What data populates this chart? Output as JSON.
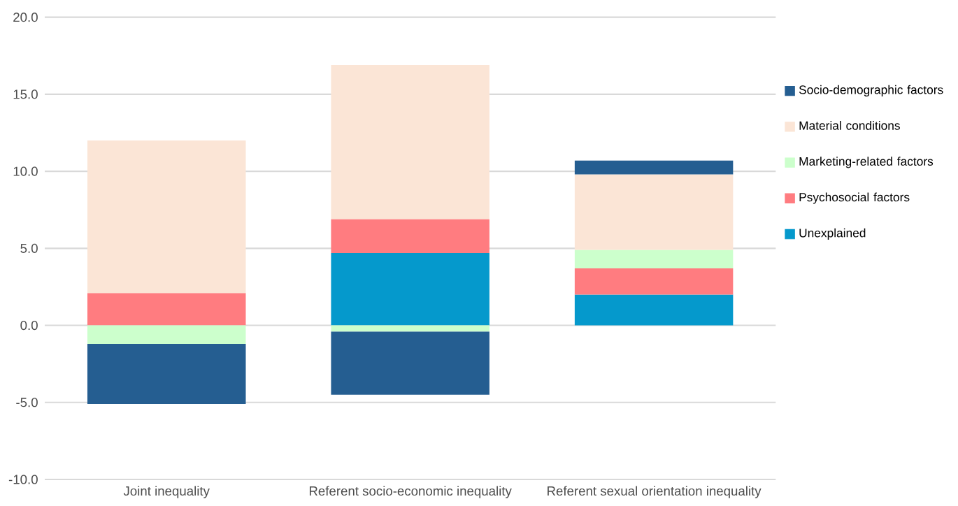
{
  "chart_data": {
    "type": "bar",
    "stacked": true,
    "categories": [
      "Joint inequality",
      "Referent socio-economic inequality",
      "Referent sexual orientation inequality"
    ],
    "series": [
      {
        "name": "Unexplained",
        "color": "#0599cc",
        "values": [
          null,
          4.7,
          2.0
        ]
      },
      {
        "name": "Psychosocial factors",
        "color": "#ff7c80",
        "values": [
          2.1,
          2.2,
          1.7
        ]
      },
      {
        "name": "Marketing-related factors",
        "color": "#ccffcc",
        "values": [
          -1.2,
          -0.4,
          1.2
        ]
      },
      {
        "name": "Material conditions",
        "color": "#fbe5d6",
        "values": [
          9.9,
          10.0,
          4.9
        ]
      },
      {
        "name": "Socio-demographic factors",
        "color": "#255e91",
        "values": [
          -3.9,
          -4.1,
          0.9
        ]
      }
    ],
    "ylim": [
      -10,
      20
    ],
    "yticks": [
      {
        "value": -10,
        "label": "-10.0"
      },
      {
        "value": -5,
        "label": "-5.0"
      },
      {
        "value": 0,
        "label": "0.0"
      },
      {
        "value": 5,
        "label": "5.0"
      },
      {
        "value": 10,
        "label": "10.0"
      },
      {
        "value": 15,
        "label": "15.0"
      },
      {
        "value": 20,
        "label": "20.0"
      }
    ],
    "grid": "y",
    "legend": "right"
  }
}
